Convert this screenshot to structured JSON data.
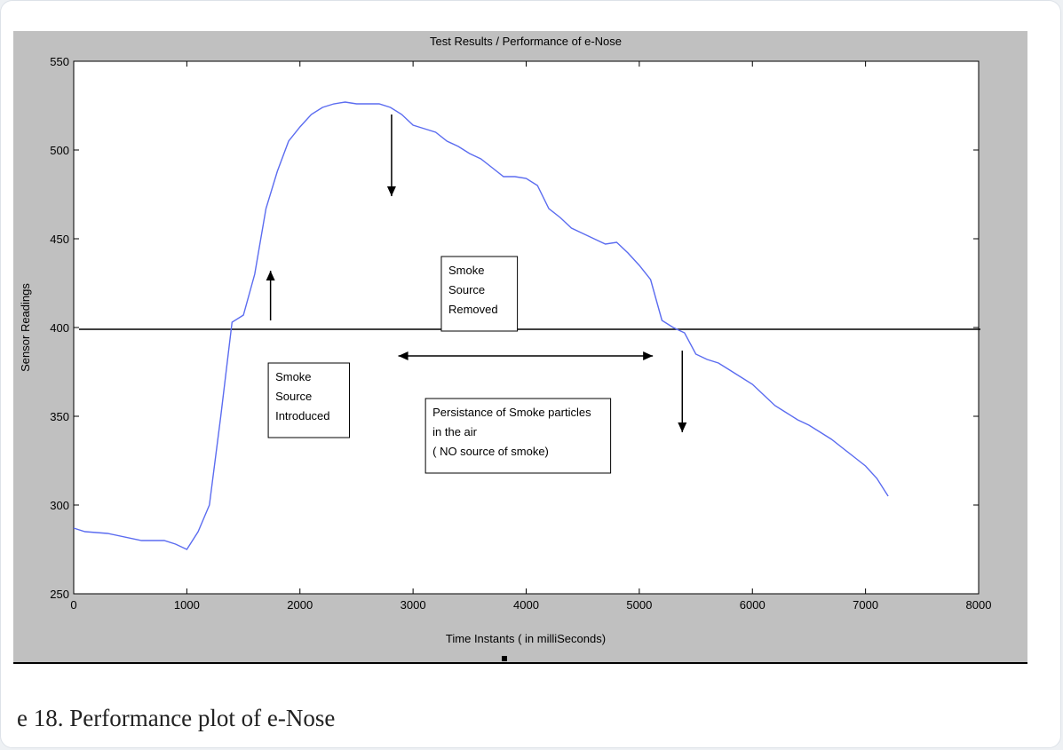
{
  "figure": {
    "caption": "e 18. Performance plot of e-Nose"
  },
  "chart_data": {
    "type": "line",
    "title": "Test Results / Performance of e-Nose",
    "xlabel": "Time Instants ( in milliSeconds)",
    "ylabel": "Sensor Readings",
    "xlim": [
      0,
      8000
    ],
    "ylim": [
      250,
      550
    ],
    "xticks": [
      0,
      1000,
      2000,
      3000,
      4000,
      5000,
      6000,
      7000,
      8000
    ],
    "yticks": [
      250,
      300,
      350,
      400,
      450,
      500,
      550
    ],
    "grid": false,
    "colors": {
      "series": "#5b6cf0",
      "axes_background": "#ffffff",
      "figure_background": "#c0c0c0",
      "threshold": "#000000"
    },
    "threshold_line": {
      "y": 399
    },
    "series": [
      {
        "x": [
          0,
          100,
          300,
          600,
          800,
          900,
          1000,
          1100,
          1200,
          1300,
          1400,
          1500,
          1600,
          1700,
          1800,
          1900,
          2000,
          2100,
          2200,
          2300,
          2400,
          2500,
          2600,
          2700,
          2800,
          2900,
          3000,
          3100,
          3200,
          3300,
          3400,
          3500,
          3600,
          3700,
          3800,
          3900,
          4000,
          4100,
          4200,
          4300,
          4400,
          4500,
          4600,
          4700,
          4800,
          4900,
          5000,
          5100,
          5200,
          5300,
          5400,
          5500,
          5600,
          5700,
          5800,
          5900,
          6000,
          6100,
          6200,
          6300,
          6400,
          6500,
          6600,
          6700,
          6800,
          6900,
          7000,
          7100,
          7200
        ],
        "values": [
          287,
          285,
          284,
          280,
          280,
          278,
          275,
          285,
          300,
          350,
          403,
          407,
          430,
          467,
          488,
          505,
          513,
          520,
          524,
          526,
          527,
          526,
          526,
          526,
          524,
          520,
          514,
          512,
          510,
          505,
          502,
          498,
          495,
          490,
          485,
          485,
          484,
          480,
          467,
          462,
          456,
          453,
          450,
          447,
          448,
          442,
          435,
          427,
          404,
          400,
          397,
          385,
          382,
          380,
          376,
          372,
          368,
          362,
          356,
          352,
          348,
          345,
          341,
          337,
          332,
          327,
          322,
          315,
          305
        ]
      }
    ],
    "annotations": [
      {
        "lines": [
          "Smoke",
          "Source",
          "Removed"
        ],
        "x": 3250,
        "y": 440
      },
      {
        "lines": [
          "Smoke",
          "Source",
          "Introduced"
        ],
        "x": 1720,
        "y": 380
      },
      {
        "lines": [
          "Persistance of Smoke particles",
          "in the air",
          "( NO source of smoke)"
        ],
        "x": 3110,
        "y": 360
      }
    ],
    "arrows": [
      {
        "from": [
          2810,
          520
        ],
        "to": [
          2810,
          474
        ],
        "style": "single"
      },
      {
        "from": [
          1740,
          404
        ],
        "to": [
          1740,
          432
        ],
        "style": "single"
      },
      {
        "from": [
          5380,
          387
        ],
        "to": [
          5380,
          341
        ],
        "style": "single"
      },
      {
        "from": [
          2870,
          384
        ],
        "to": [
          5120,
          384
        ],
        "style": "double"
      }
    ]
  }
}
